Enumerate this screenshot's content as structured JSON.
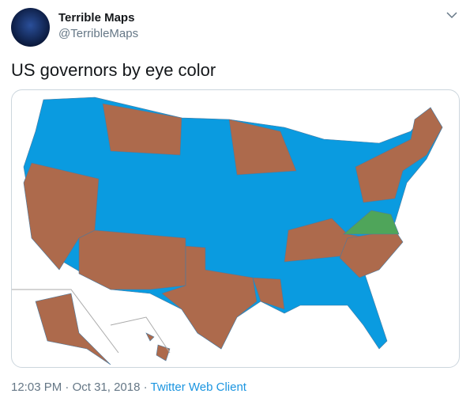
{
  "header": {
    "name": "Terrible Maps",
    "handle": "@TerribleMaps"
  },
  "tweet": {
    "text": "US governors by eye color"
  },
  "footer": {
    "time": "12:03 PM",
    "separator": "·",
    "date": "Oct 31, 2018",
    "source": "Twitter Web Client"
  }
}
